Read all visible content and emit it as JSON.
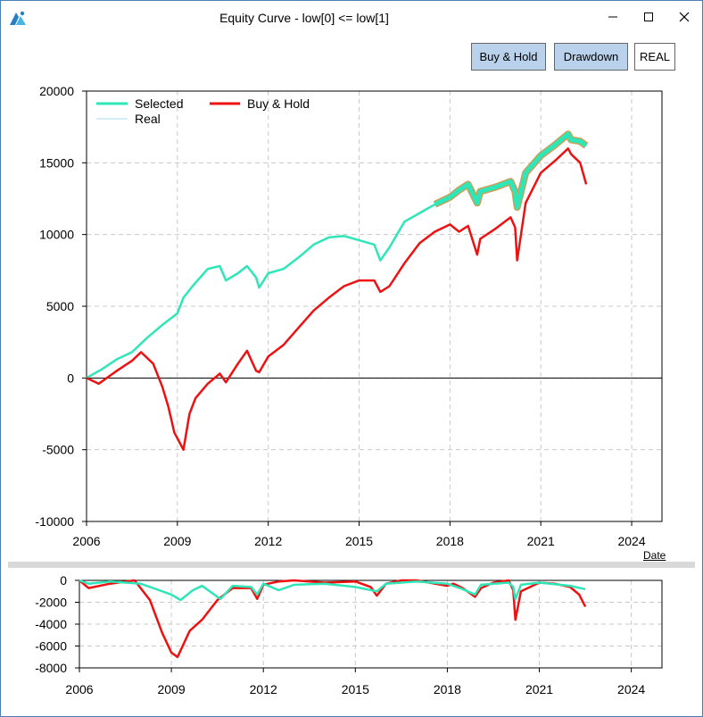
{
  "window": {
    "title": "Equity Curve - low[0] <= low[1]"
  },
  "toolbar": {
    "buyhold_label": "Buy & Hold",
    "drawdown_label": "Drawdown",
    "real_label": "REAL"
  },
  "colors": {
    "selected": "#2ee6b8",
    "buy_hold": "#ee1111",
    "real": "#a8d8ef",
    "real_outline": "#c9a05a",
    "accent_button": "#b9d1ea"
  },
  "chart_data": [
    {
      "type": "line",
      "title": "",
      "xlabel": "Date",
      "ylabel": "",
      "xlim": [
        2006.0,
        2025.0
      ],
      "ylim": [
        -10000,
        20000
      ],
      "x_ticks": [
        "2006",
        "2009",
        "2012",
        "2015",
        "2018",
        "2021",
        "2024"
      ],
      "y_ticks": [
        "20000",
        "15000",
        "10000",
        "5000",
        "0",
        "-5000",
        "-10000"
      ],
      "grid": true,
      "legend": "top-left",
      "series": [
        {
          "name": "Selected",
          "x": [
            2006.0,
            2006.5,
            2007.0,
            2007.5,
            2008.0,
            2008.5,
            2009.0,
            2009.2,
            2009.5,
            2010.0,
            2010.4,
            2010.6,
            2011.0,
            2011.3,
            2011.6,
            2011.7,
            2012.0,
            2012.5,
            2013.0,
            2013.5,
            2014.0,
            2014.5,
            2015.0,
            2015.5,
            2015.7,
            2016.0,
            2016.5,
            2017.0,
            2017.5
          ],
          "y": [
            0,
            600,
            1300,
            1800,
            2800,
            3700,
            4500,
            5600,
            6400,
            7600,
            7800,
            6800,
            7300,
            7800,
            7000,
            6300,
            7300,
            7600,
            8400,
            9300,
            9800,
            9900,
            9600,
            9300,
            8200,
            9100,
            10900,
            11500,
            12100
          ]
        },
        {
          "name": "Buy & Hold",
          "x": [
            2006.0,
            2006.4,
            2007.0,
            2007.5,
            2007.8,
            2008.2,
            2008.5,
            2008.7,
            2008.9,
            2009.05,
            2009.2,
            2009.4,
            2009.6,
            2010.0,
            2010.4,
            2010.6,
            2011.0,
            2011.3,
            2011.6,
            2011.7,
            2012.0,
            2012.5,
            2013.0,
            2013.5,
            2014.0,
            2014.5,
            2015.0,
            2015.5,
            2015.7,
            2016.0,
            2016.5,
            2017.0,
            2017.5,
            2018.0,
            2018.3,
            2018.6,
            2018.9,
            2019.0,
            2019.5,
            2020.0,
            2020.15,
            2020.22,
            2020.5,
            2021.0,
            2021.5,
            2021.9,
            2022.0,
            2022.3,
            2022.5
          ],
          "y": [
            0,
            -400,
            500,
            1200,
            1800,
            1000,
            -600,
            -2000,
            -3800,
            -4400,
            -5000,
            -2500,
            -1400,
            -400,
            300,
            -300,
            1000,
            1900,
            500,
            400,
            1500,
            2300,
            3500,
            4700,
            5600,
            6400,
            6800,
            6800,
            6000,
            6400,
            8000,
            9400,
            10200,
            10700,
            10200,
            10600,
            8600,
            9700,
            10400,
            11200,
            10500,
            8200,
            12200,
            14300,
            15200,
            16000,
            15600,
            15000,
            13500
          ]
        },
        {
          "name": "Real",
          "x": [
            2017.5,
            2018.0,
            2018.3,
            2018.6,
            2018.9,
            2019.0,
            2019.5,
            2020.0,
            2020.15,
            2020.22,
            2020.5,
            2021.0,
            2021.5,
            2021.9,
            2022.0,
            2022.3,
            2022.5
          ],
          "y": [
            12100,
            12600,
            13100,
            13500,
            12200,
            13000,
            13300,
            13700,
            13000,
            11900,
            14300,
            15500,
            16300,
            17000,
            16600,
            16500,
            16200
          ]
        }
      ]
    },
    {
      "type": "area",
      "title": "",
      "xlabel": "",
      "ylabel": "",
      "xlim": [
        2006.0,
        2025.0
      ],
      "ylim": [
        -8000,
        0
      ],
      "x_ticks": [
        "2006",
        "2009",
        "2012",
        "2015",
        "2018",
        "2021",
        "2024"
      ],
      "y_ticks": [
        "0",
        "-2000",
        "-4000",
        "-6000",
        "-8000"
      ],
      "grid": true,
      "series": [
        {
          "name": "Buy & Hold",
          "x": [
            2006.0,
            2006.3,
            2007.0,
            2007.8,
            2008.3,
            2008.7,
            2009.0,
            2009.2,
            2009.6,
            2010.0,
            2010.5,
            2011.0,
            2011.6,
            2011.8,
            2012.0,
            2012.5,
            2013.0,
            2014.0,
            2015.0,
            2015.5,
            2015.7,
            2016.0,
            2016.5,
            2017.0,
            2018.0,
            2018.2,
            2018.5,
            2018.9,
            2019.1,
            2019.5,
            2020.0,
            2020.15,
            2020.22,
            2020.4,
            2021.0,
            2021.5,
            2022.0,
            2022.3,
            2022.5
          ],
          "y": [
            0,
            -700,
            -300,
            0,
            -1800,
            -4800,
            -6600,
            -7000,
            -4600,
            -3600,
            -1800,
            -700,
            -700,
            -1700,
            -400,
            -100,
            0,
            -200,
            -100,
            -600,
            -1400,
            -300,
            0,
            0,
            -500,
            -300,
            -700,
            -1500,
            -700,
            -200,
            0,
            -900,
            -3600,
            -1000,
            -200,
            -300,
            -600,
            -1300,
            -2400
          ]
        },
        {
          "name": "Selected",
          "x": [
            2006.0,
            2006.3,
            2007.0,
            2008.0,
            2008.6,
            2009.0,
            2009.3,
            2009.7,
            2010.0,
            2010.6,
            2011.0,
            2011.6,
            2011.8,
            2012.0,
            2012.5,
            2013.0,
            2014.0,
            2015.0,
            2015.7,
            2016.0,
            2017.0,
            2018.0,
            2018.5,
            2018.9,
            2019.1,
            2020.0,
            2020.15,
            2020.22,
            2020.4,
            2021.0,
            2022.0,
            2022.5
          ],
          "y": [
            0,
            -300,
            -100,
            -300,
            -900,
            -1300,
            -1800,
            -900,
            -500,
            -1700,
            -500,
            -600,
            -1300,
            -300,
            -900,
            -400,
            -300,
            -600,
            -1000,
            -300,
            -100,
            -300,
            -800,
            -1300,
            -400,
            -200,
            -600,
            -1700,
            -400,
            -200,
            -500,
            -800
          ]
        }
      ]
    }
  ]
}
